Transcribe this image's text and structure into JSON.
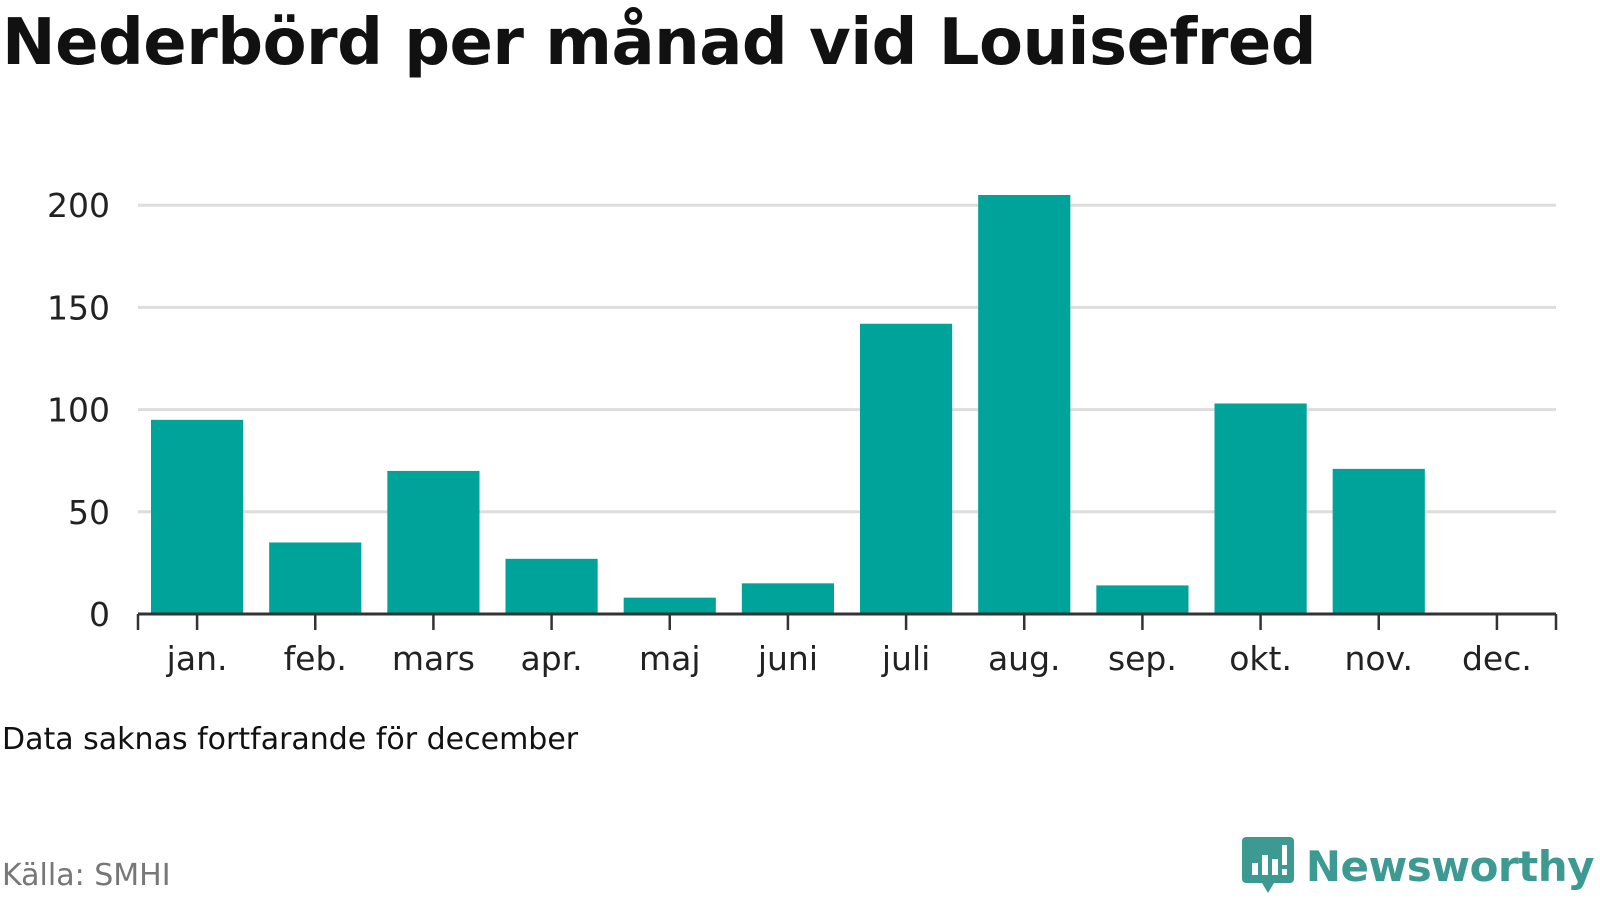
{
  "title": "Nederbörd per månad vid Louisefred",
  "note": "Data saknas fortfarande för december",
  "source": "Källa: SMHI",
  "brand": {
    "name": "Newsworthy",
    "icon": "newsworthy-logo-icon",
    "color": "#3d9a93"
  },
  "chart_data": {
    "type": "bar",
    "categories": [
      "jan.",
      "feb.",
      "mars",
      "apr.",
      "maj",
      "juni",
      "juli",
      "aug.",
      "sep.",
      "okt.",
      "nov.",
      "dec."
    ],
    "values": [
      95,
      35,
      70,
      27,
      8,
      15,
      142,
      205,
      14,
      103,
      71,
      null
    ],
    "title": "Nederbörd per månad vid Louisefred",
    "xlabel": "",
    "ylabel": "",
    "ylim": [
      0,
      205
    ],
    "yticks": [
      0,
      50,
      100,
      150,
      200
    ],
    "grid": true,
    "legend": "none",
    "bar_color": "#00a39a",
    "grid_color": "#dddddd",
    "axis_color": "#333333"
  }
}
